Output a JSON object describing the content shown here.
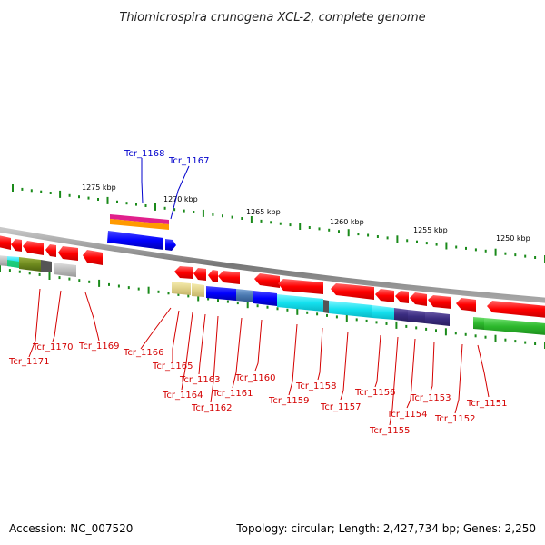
{
  "title": "Thiomicrospira crunogena XCL-2, complete genome",
  "accession": "Accession: NC_007520",
  "summary": "Topology: circular; Length: 2,427,734 bp; Genes: 2,250",
  "scale_labels": [
    "1275 kbp",
    "1270 kbp",
    "1265 kbp",
    "1260 kbp",
    "1255 kbp",
    "1250 kbp"
  ],
  "gene_labels": [
    {
      "id": "Tcr_1168",
      "color": "#0000cc"
    },
    {
      "id": "Tcr_1167",
      "color": "#0000cc"
    },
    {
      "id": "Tcr_1171",
      "color": "#d40000"
    },
    {
      "id": "Tcr_1170",
      "color": "#d40000"
    },
    {
      "id": "Tcr_1169",
      "color": "#d40000"
    },
    {
      "id": "Tcr_1166",
      "color": "#d40000"
    },
    {
      "id": "Tcr_1165",
      "color": "#d40000"
    },
    {
      "id": "Tcr_1164",
      "color": "#d40000"
    },
    {
      "id": "Tcr_1163",
      "color": "#d40000"
    },
    {
      "id": "Tcr_1162",
      "color": "#d40000"
    },
    {
      "id": "Tcr_1161",
      "color": "#d40000"
    },
    {
      "id": "Tcr_1160",
      "color": "#d40000"
    },
    {
      "id": "Tcr_1159",
      "color": "#d40000"
    },
    {
      "id": "Tcr_1158",
      "color": "#d40000"
    },
    {
      "id": "Tcr_1157",
      "color": "#d40000"
    },
    {
      "id": "Tcr_1156",
      "color": "#d40000"
    },
    {
      "id": "Tcr_1155",
      "color": "#d40000"
    },
    {
      "id": "Tcr_1154",
      "color": "#d40000"
    },
    {
      "id": "Tcr_1153",
      "color": "#d40000"
    },
    {
      "id": "Tcr_1152",
      "color": "#d40000"
    },
    {
      "id": "Tcr_1151",
      "color": "#d40000"
    }
  ],
  "colors": {
    "backbone": "#888888",
    "tick": "#1a8a1a",
    "forward_gene": "#0000ff",
    "reverse_gene": "#ff0000"
  }
}
